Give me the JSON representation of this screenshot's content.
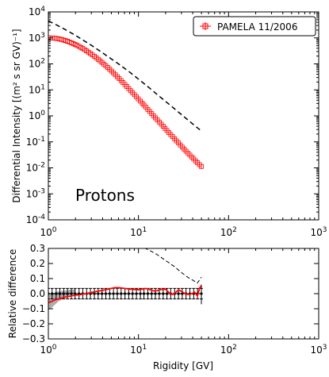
{
  "chart_data": [
    {
      "type": "scatter",
      "xscale": "log",
      "yscale": "log",
      "xlim": [
        1,
        1000
      ],
      "ylim": [
        0.0001,
        10000
      ],
      "ylabel": "Differential Intensity [(m² s sr GV)⁻¹]",
      "xlabel": "",
      "annotation": "Protons",
      "legend": {
        "placement": "top-right",
        "entries": [
          "PAMELA 11/2006"
        ]
      },
      "x_tick_labels": [
        {
          "value": 1,
          "base": "10",
          "exp": "0"
        },
        {
          "value": 10,
          "base": "10",
          "exp": "1"
        },
        {
          "value": 100,
          "base": "10",
          "exp": "2"
        },
        {
          "value": 1000,
          "base": "10",
          "exp": "3"
        }
      ],
      "y_tick_labels": [
        {
          "value": 0.0001,
          "base": "10",
          "exp": "-4"
        },
        {
          "value": 0.001,
          "base": "10",
          "exp": "-3"
        },
        {
          "value": 0.01,
          "base": "10",
          "exp": "-2"
        },
        {
          "value": 0.1,
          "base": "10",
          "exp": "-1"
        },
        {
          "value": 1,
          "base": "10",
          "exp": "0"
        },
        {
          "value": 10,
          "base": "10",
          "exp": "1"
        },
        {
          "value": 100,
          "base": "10",
          "exp": "2"
        },
        {
          "value": 1000,
          "base": "10",
          "exp": "3"
        },
        {
          "value": 10000,
          "base": "10",
          "exp": "4"
        }
      ],
      "series": [
        {
          "name": "PAMELA 11/2006",
          "style": "points",
          "color": "#ff0000",
          "marker": "square-open",
          "x": [
            1.0,
            1.05,
            1.1,
            1.16,
            1.22,
            1.28,
            1.34,
            1.41,
            1.48,
            1.55,
            1.63,
            1.71,
            1.8,
            1.89,
            1.98,
            2.08,
            2.19,
            2.3,
            2.41,
            2.53,
            2.66,
            2.79,
            2.93,
            3.08,
            3.24,
            3.4,
            3.57,
            3.75,
            3.94,
            4.13,
            4.34,
            4.56,
            4.79,
            5.03,
            5.28,
            5.54,
            5.82,
            6.11,
            6.42,
            6.74,
            7.08,
            7.43,
            7.8,
            8.19,
            8.6,
            9.03,
            9.49,
            9.96,
            10.5,
            11.0,
            11.5,
            12.1,
            12.7,
            13.3,
            14.0,
            14.7,
            15.4,
            16.2,
            17.0,
            17.9,
            18.8,
            19.7,
            20.7,
            21.7,
            22.8,
            24.0,
            25.2,
            26.4,
            27.8,
            29.1,
            30.6,
            32.1,
            33.7,
            35.4,
            37.2,
            39.1,
            41.0,
            43.1,
            45.2,
            47.5,
            49.9
          ],
          "y": [
            1000,
            1000,
            990,
            975,
            955,
            930,
            900,
            865,
            825,
            785,
            740,
            695,
            650,
            605,
            560,
            515,
            470,
            430,
            390,
            350,
            315,
            282,
            250,
            222,
            196,
            172,
            150,
            131,
            114,
            98,
            85,
            73,
            62,
            53,
            45,
            38,
            32,
            27,
            22.8,
            19.1,
            16.0,
            13.4,
            11.2,
            9.3,
            7.8,
            6.5,
            5.4,
            4.5,
            3.7,
            3.1,
            2.6,
            2.15,
            1.78,
            1.48,
            1.22,
            1.01,
            0.84,
            0.7,
            0.58,
            0.48,
            0.4,
            0.33,
            0.275,
            0.228,
            0.19,
            0.158,
            0.131,
            0.109,
            0.091,
            0.076,
            0.063,
            0.053,
            0.044,
            0.037,
            0.031,
            0.026,
            0.022,
            0.0185,
            0.0157,
            0.0133,
            0.0113
          ]
        },
        {
          "name": "",
          "style": "dashed-line",
          "color": "#000000",
          "x": [
            1.0,
            1.2,
            1.5,
            2.0,
            2.5,
            3.0,
            4.0,
            5.0,
            6.0,
            8.0,
            10,
            13,
            16,
            20,
            25,
            30,
            40,
            50
          ],
          "y": [
            4500,
            3300,
            2200,
            1250,
            770,
            520,
            265,
            155,
            100,
            48,
            26,
            12.5,
            6.8,
            3.6,
            1.9,
            1.12,
            0.49,
            0.26
          ]
        }
      ]
    },
    {
      "type": "line",
      "xscale": "log",
      "xlim": [
        1,
        1000
      ],
      "ylim": [
        -0.3,
        0.3
      ],
      "xlabel": "Rigidity [GV]",
      "ylabel": "Relative difference",
      "x_tick_labels": [
        {
          "value": 1,
          "base": "10",
          "exp": "0"
        },
        {
          "value": 10,
          "base": "10",
          "exp": "1"
        },
        {
          "value": 100,
          "base": "10",
          "exp": "2"
        },
        {
          "value": 1000,
          "base": "10",
          "exp": "3"
        }
      ],
      "y_tick_labels": [
        "0.3",
        "0.2",
        "0.1",
        "0.0",
        "−0.1",
        "−0.2",
        "−0.3"
      ],
      "y_tick_values": [
        0.3,
        0.2,
        0.1,
        0.0,
        -0.1,
        -0.2,
        -0.3
      ],
      "series": [
        {
          "name": "",
          "style": "dashed-line",
          "color": "#000000",
          "x": [
            10,
            13,
            16,
            20,
            25,
            30,
            35,
            40,
            45,
            50
          ],
          "y": [
            0.32,
            0.29,
            0.26,
            0.22,
            0.18,
            0.14,
            0.11,
            0.09,
            0.07,
            0.11
          ]
        },
        {
          "name": "",
          "style": "band",
          "color": "#999999",
          "x": [
            1.0,
            1.05,
            1.1,
            1.2,
            1.3,
            1.5,
            1.7,
            2.0
          ],
          "upper": [
            -0.01,
            -0.005,
            0.0,
            0.01,
            0.015,
            0.02,
            0.025,
            0.03
          ],
          "lower": [
            -0.11,
            -0.1,
            -0.09,
            -0.07,
            -0.05,
            -0.03,
            -0.01,
            0.0
          ]
        },
        {
          "name": "",
          "style": "errorbars",
          "color": "#000000",
          "x": [
            1.0,
            1.1,
            1.22,
            1.34,
            1.48,
            1.63,
            1.8,
            1.98,
            2.19,
            2.41,
            2.66,
            2.93,
            3.24,
            3.57,
            3.94,
            4.34,
            4.79,
            5.28,
            5.82,
            6.42,
            7.08,
            7.8,
            8.6,
            9.49,
            10.5,
            11.5,
            12.7,
            14.0,
            15.4,
            17.0,
            18.8,
            20.7,
            22.8,
            25.2,
            27.8,
            30.6,
            33.7,
            37.2,
            41.0,
            45.2,
            49.9
          ],
          "y": [
            0.0,
            0.0,
            0.0,
            0.0,
            0.0,
            0.0,
            0.0,
            0.0,
            0.0,
            0.0,
            0.0,
            0.0,
            0.0,
            0.0,
            0.0,
            0.0,
            0.0,
            0.0,
            0.0,
            0.0,
            0.0,
            0.0,
            0.0,
            0.0,
            0.0,
            0.0,
            0.0,
            0.0,
            0.0,
            0.0,
            0.0,
            0.0,
            0.0,
            0.0,
            0.0,
            0.0,
            0.0,
            0.0,
            0.0,
            0.0,
            0.0
          ],
          "err": [
            0.035,
            0.035,
            0.035,
            0.035,
            0.035,
            0.035,
            0.035,
            0.035,
            0.035,
            0.035,
            0.035,
            0.035,
            0.035,
            0.035,
            0.035,
            0.035,
            0.035,
            0.035,
            0.035,
            0.035,
            0.035,
            0.035,
            0.035,
            0.035,
            0.035,
            0.035,
            0.035,
            0.035,
            0.035,
            0.035,
            0.035,
            0.035,
            0.035,
            0.035,
            0.035,
            0.035,
            0.035,
            0.035,
            0.035,
            0.035,
            0.035
          ]
        },
        {
          "name": "",
          "style": "line",
          "color": "#ff0000",
          "x": [
            1.0,
            1.1,
            1.2,
            1.3,
            1.5,
            1.7,
            2.0,
            2.3,
            2.6,
            3.0,
            3.5,
            4.0,
            4.5,
            5.0,
            5.5,
            6.0,
            7.0,
            8.0,
            9.0,
            10,
            11,
            12,
            13,
            14,
            15,
            16,
            17,
            18,
            20,
            22,
            24,
            26,
            28,
            30,
            33,
            36,
            39,
            42,
            45,
            48,
            50
          ],
          "y": [
            -0.06,
            -0.05,
            -0.04,
            -0.035,
            -0.025,
            -0.018,
            -0.01,
            -0.006,
            0.0,
            0.008,
            0.016,
            0.022,
            0.028,
            0.035,
            0.04,
            0.04,
            0.035,
            0.03,
            0.028,
            0.026,
            0.03,
            0.034,
            0.03,
            0.022,
            0.018,
            0.02,
            0.025,
            0.028,
            0.03,
            0.005,
            -0.005,
            0.01,
            0.025,
            0.015,
            0.0,
            -0.005,
            0.0,
            0.01,
            -0.015,
            0.04,
            0.055
          ]
        }
      ]
    }
  ]
}
